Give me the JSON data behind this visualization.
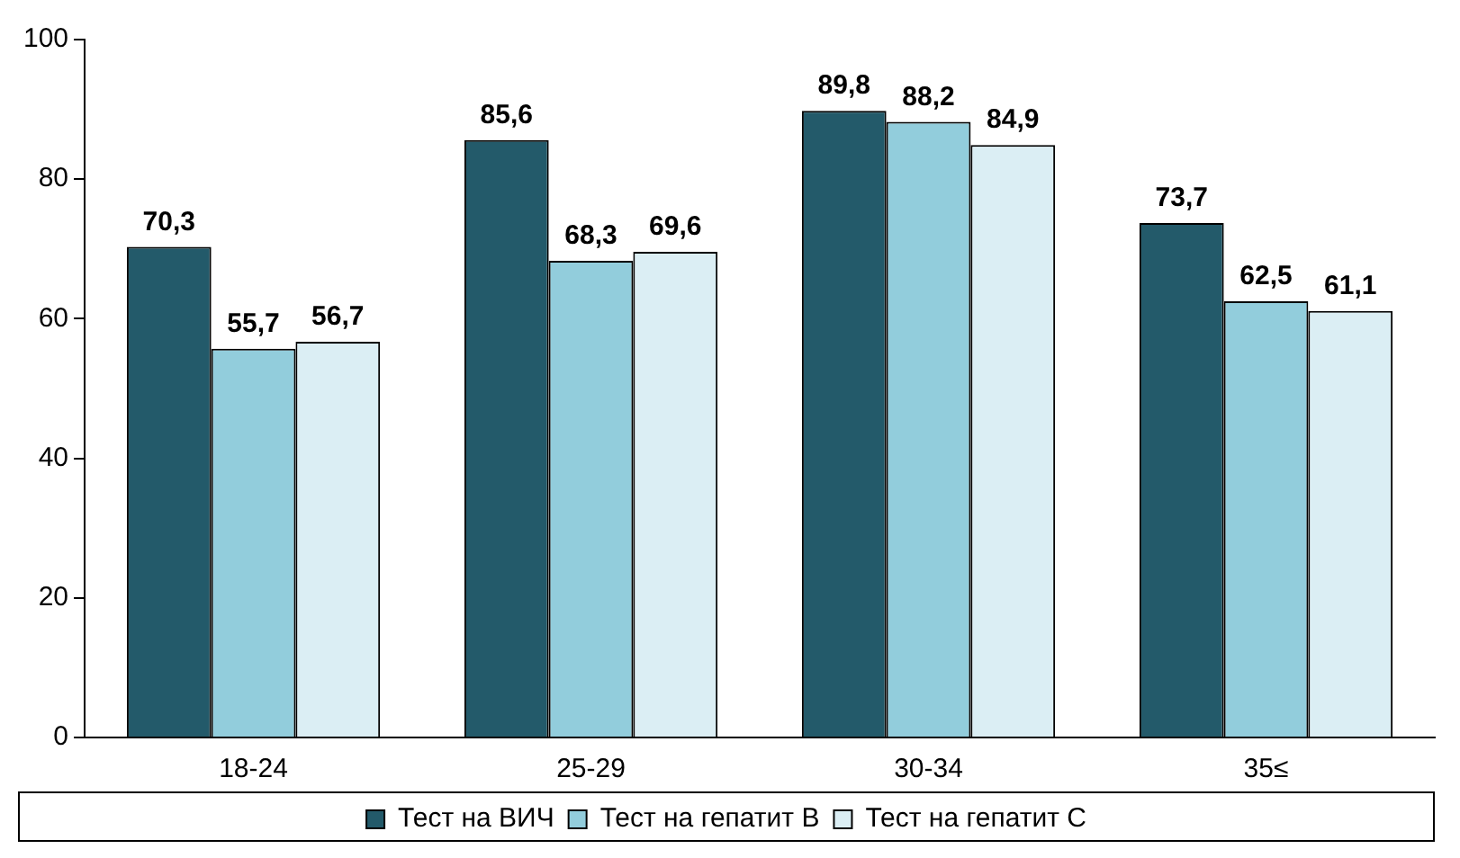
{
  "chart_data": {
    "type": "bar",
    "categories": [
      "18-24",
      "25-29",
      "30-34",
      "35≤"
    ],
    "series": [
      {
        "name": "Тест на ВИЧ",
        "color": "#235a6a",
        "values": [
          70.3,
          85.6,
          89.8,
          73.7
        ],
        "value_labels": [
          "70,3",
          "85,6",
          "89,8",
          "73,7"
        ]
      },
      {
        "name": "Тест на гепатит В",
        "color": "#92cddc",
        "values": [
          55.7,
          68.3,
          88.2,
          62.5
        ],
        "value_labels": [
          "55,7",
          "68,3",
          "88,2",
          "62,5"
        ]
      },
      {
        "name": "Тест на гепатит С",
        "color": "#dbeef4",
        "values": [
          56.7,
          69.6,
          84.9,
          61.1
        ],
        "value_labels": [
          "56,7",
          "69,6",
          "84,9",
          "61,1"
        ]
      }
    ],
    "ylim": [
      0,
      100
    ],
    "yticks": [
      0,
      20,
      40,
      60,
      80,
      100
    ],
    "grid": false,
    "legend": "bottom"
  }
}
